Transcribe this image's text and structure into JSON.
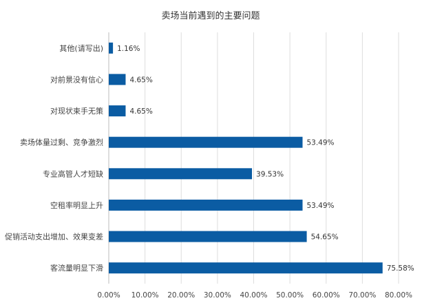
{
  "chart_data": {
    "type": "bar",
    "orientation": "horizontal",
    "title": "卖场当前遇到的主要问题",
    "categories": [
      "其他(请写出)",
      "对前景没有信心",
      "对现状束手无策",
      "卖场体量过剩、竞争激烈",
      "专业高管人才短缺",
      "空租率明显上升",
      "促销活动支出增加、效果变差",
      "客流量明显下滑"
    ],
    "values": [
      1.16,
      4.65,
      4.65,
      53.49,
      39.53,
      53.49,
      54.65,
      75.58
    ],
    "value_labels": [
      "1.16%",
      "4.65%",
      "4.65%",
      "53.49%",
      "39.53%",
      "53.49%",
      "54.65%",
      "75.58%"
    ],
    "xlim": [
      0,
      80
    ],
    "xticks": [
      "0.00%",
      "10.00%",
      "20.00%",
      "30.00%",
      "40.00%",
      "50.00%",
      "60.00%",
      "70.00%",
      "80.00%"
    ],
    "grid": true,
    "bar_color": "#0b5ca3"
  }
}
